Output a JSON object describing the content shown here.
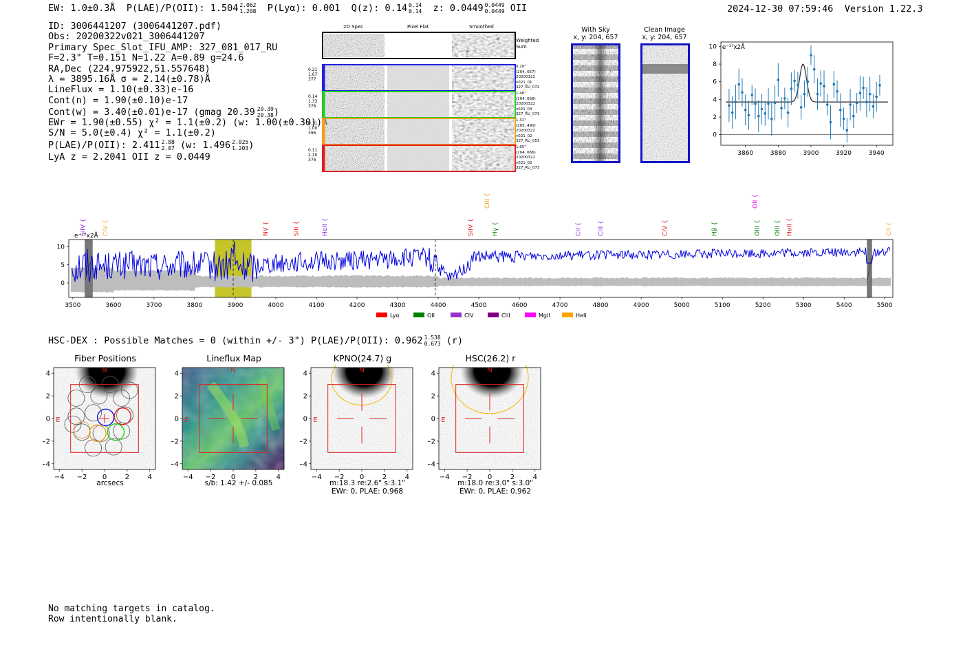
{
  "header": {
    "ew": "EW: 1.0±0.3Å",
    "plae_label": "P(LAE)/P(OII): 1.504",
    "plae_sup": "2.062",
    "plae_sub": "1.208",
    "plya": "P(Lyα): 0.001",
    "qz_label": "Q(z): 0.14",
    "qz_sup": "0.14",
    "qz_sub": "0.14",
    "z_label": "z: 0.0449",
    "z_sup": "0.0449",
    "z_sub": "0.0449",
    "z_line": "OII",
    "timestamp": "2024-12-30 07:59:46",
    "version": "Version 1.22.3"
  },
  "info": {
    "lines": [
      "ID: 3006441207 (3006441207.pdf)",
      "Obs: 20200322v021_3006441207",
      "Primary Spec_Slot_IFU_AMP: 327_081_017_RU",
      "F=2.3\"  T=0.151  N=1.22  A=0.89  g=24.6",
      "RA,Dec (224.975922,51.557648)",
      "λ = 3895.16Å  σ = 2.14(±0.78)Å",
      "LineFlux = 1.10(±0.33)e-16",
      "Cont(n) = 1.90(±0.10)e-17"
    ],
    "contw": "Cont(w) = 3.40(±0.01)e-17 (gmag 20.39",
    "contw_sup": "20.39",
    "contw_sub": "20.38",
    "ewr": "EWr = 1.90(±0.55) χ² = 1.1(±0.2) (w: 1.00(±0.30))Å",
    "sn": "S/N = 5.0(±0.4)  χ² = 1.1(±0.2)",
    "plae2": "P(LAE)/P(OII): 2.411",
    "plae2_sup": "2.88",
    "plae2_sub": "2.07",
    "plae2_w": "(w: 1.496",
    "plae2_w_sup": "2.025",
    "plae2_w_sub": "1.203",
    "lya": "LyA z = 2.2041   OII z = 0.0449"
  },
  "spec2d": {
    "col_titles": [
      "2D Spec",
      "Pixel Flat",
      "Smoothed"
    ],
    "weighted_label": "Weighted Sum",
    "rows": [
      {
        "left": [
          "0.21",
          "1.67",
          "377"
        ],
        "right": [
          "0.20\"",
          "(204, 657)",
          "20200322",
          "v021_01",
          "327_RU_072"
        ],
        "color": "#1f1fe0"
      },
      {
        "left": [
          "0.14",
          "1.33",
          "376"
        ],
        "right": [
          "1.46\"",
          "(204, 666)",
          "20200322",
          "v021_03",
          "327_RU_073"
        ],
        "color": "#22cc22"
      },
      {
        "left": [
          "0.11",
          "1.00",
          "396"
        ],
        "right": [
          "1.31\"",
          "(205, 490)",
          "20200322",
          "v021_02",
          "327_RU_053"
        ],
        "color": "#f0a020"
      },
      {
        "left": [
          "0.11",
          "2.10",
          "376"
        ],
        "right": [
          "1.65\"",
          "(204, 666)",
          "20200322",
          "v021_02",
          "327_RU_073"
        ],
        "color": "#e02020"
      }
    ]
  },
  "cutouts": {
    "with_sky_title": "With Sky",
    "with_sky_coords": "x, y: 204, 657",
    "clean_title": "Clean Image",
    "clean_coords": "x, y: 204, 657"
  },
  "zoom_chart": {
    "ylabel": "e⁻¹⁷x2Å",
    "xticks": [
      "3860",
      "3880",
      "3900",
      "3920",
      "3940"
    ],
    "yticks": [
      "0",
      "2",
      "4",
      "6",
      "8",
      "10"
    ]
  },
  "chart_data": [
    {
      "type": "scatter",
      "title": "",
      "xlabel": "",
      "ylabel": "e-17 x2Å",
      "xlim": [
        3845,
        3950
      ],
      "ylim": [
        -1.2,
        10.5
      ],
      "x": [
        3850,
        3852,
        3854,
        3856,
        3858,
        3860,
        3862,
        3864,
        3866,
        3868,
        3870,
        3872,
        3874,
        3876,
        3878,
        3880,
        3882,
        3884,
        3886,
        3888,
        3890,
        3892,
        3894,
        3896,
        3898,
        3900,
        3902,
        3904,
        3906,
        3908,
        3910,
        3912,
        3914,
        3916,
        3918,
        3920,
        3922,
        3924,
        3926,
        3928,
        3930,
        3932,
        3934,
        3936,
        3938,
        3940,
        3942
      ],
      "values": [
        3.3,
        2.5,
        3.7,
        5.7,
        4.8,
        2.8,
        2.2,
        4.5,
        3.5,
        2.1,
        2.9,
        2.4,
        3.5,
        1.8,
        3.6,
        6.2,
        3.0,
        4.1,
        2.5,
        5.2,
        6.1,
        5.6,
        3.1,
        4.6,
        6.0,
        9.0,
        7.4,
        4.6,
        5.8,
        5.5,
        3.4,
        1.4,
        5.7,
        4.9,
        2.8,
        1.8,
        0.5,
        3.4,
        2.1,
        3.6,
        4.7,
        5.3,
        3.7,
        4.6,
        3.2,
        4.3,
        5.6
      ],
      "fit_continuum": 3.7,
      "fit_peak": 8.0,
      "fit_center": 3895.16
    },
    {
      "type": "line",
      "title": "",
      "xlabel": "",
      "ylabel": "e-17 x2Å",
      "xlim": [
        3490,
        5520
      ],
      "ylim": [
        -4,
        12
      ],
      "xticks": [
        3500,
        3600,
        3700,
        3800,
        3900,
        4000,
        4100,
        4200,
        4300,
        4400,
        4500,
        4600,
        4700,
        4800,
        4900,
        5000,
        5100,
        5200,
        5300,
        5400,
        5500
      ],
      "yticks": [
        0,
        5,
        10
      ],
      "highlight_band": [
        3850,
        3940
      ],
      "dashed_lines": [
        3895,
        4393
      ],
      "masked_regions": [
        [
          3530,
          3548
        ],
        [
          5457,
          5468
        ]
      ],
      "series": [
        {
          "name": "flux",
          "color": "#0000dd"
        }
      ],
      "line_markers": [
        {
          "label": "SiIV",
          "x": 3525,
          "color": "#8a2be2",
          "row": 0
        },
        {
          "label": "CIV",
          "x": 3580,
          "color": "#f0a020",
          "row": 0
        },
        {
          "label": "NV",
          "x": 3975,
          "color": "#e02020",
          "row": 0
        },
        {
          "label": "SiII",
          "x": 4050,
          "color": "#e02020",
          "row": 0
        },
        {
          "label": "HeII",
          "x": 4120,
          "color": "#8a2be2",
          "row": 0
        },
        {
          "label": "SiIV",
          "x": 4480,
          "color": "#e02020",
          "row": 0
        },
        {
          "label": "CIII",
          "x": 4520,
          "color": "#f0a020",
          "row": 1
        },
        {
          "label": "Hγ",
          "x": 4540,
          "color": "#008000",
          "row": 0
        },
        {
          "label": "CII",
          "x": 4745,
          "color": "#8a2be2",
          "row": 0
        },
        {
          "label": "CIII",
          "x": 4800,
          "color": "#8a2be2",
          "row": 0
        },
        {
          "label": "CIV",
          "x": 4958,
          "color": "#e02020",
          "row": 0
        },
        {
          "label": "Hβ",
          "x": 5080,
          "color": "#008000",
          "row": 0
        },
        {
          "label": "OII",
          "x": 5180,
          "color": "#ee00ee",
          "row": 1
        },
        {
          "label": "OIII",
          "x": 5185,
          "color": "#008000",
          "row": 0
        },
        {
          "label": "OIII",
          "x": 5235,
          "color": "#008000",
          "row": 0
        },
        {
          "label": "HeII",
          "x": 5265,
          "color": "#e02020",
          "row": 0
        },
        {
          "label": "CII",
          "x": 5510,
          "color": "#f0a020",
          "row": 0
        }
      ],
      "legend": [
        {
          "label": "Lyα",
          "color": "#ff0000"
        },
        {
          "label": "OII",
          "color": "#008000"
        },
        {
          "label": "CIV",
          "color": "#9932cc"
        },
        {
          "label": "CIII",
          "color": "#800080"
        },
        {
          "label": "MgII",
          "color": "#ff00ff"
        },
        {
          "label": "HeII",
          "color": "#ffa500"
        }
      ]
    }
  ],
  "spectrum": {
    "ylabel": "e⁻¹⁷x2Å",
    "xticks": [
      "3500",
      "3600",
      "3700",
      "3800",
      "3900",
      "4000",
      "4100",
      "4200",
      "4300",
      "4400",
      "4500",
      "4600",
      "4700",
      "4800",
      "4900",
      "5000",
      "5100",
      "5200",
      "5300",
      "5400",
      "5500"
    ],
    "yticks": [
      "0",
      "5",
      "10"
    ]
  },
  "legend": [
    {
      "label": "Lyα",
      "color": "#ff0000"
    },
    {
      "label": "OII",
      "color": "#008000"
    },
    {
      "label": "CIV",
      "color": "#9932cc"
    },
    {
      "label": "CIII",
      "color": "#800080"
    },
    {
      "label": "MgII",
      "color": "#ff00ff"
    },
    {
      "label": "HeII",
      "color": "#ffa500"
    }
  ],
  "hsc": {
    "label": "HSC-DEX : Possible Matches = 0 (within +/- 3\")  P(LAE)/P(OII): 0.962",
    "sup": "1.538",
    "sub": "0.673",
    "band": "(r)"
  },
  "panels": [
    {
      "title": "Fiber Positions",
      "caption1": "arcsecs",
      "caption2": ""
    },
    {
      "title": "Lineflux Map",
      "caption1": "s/b: 1.42 +/- 0.085",
      "caption2": ""
    },
    {
      "title": "KPNO(24.7) g",
      "caption1": "m:18.3  re:2.6\"  s:3.1\"",
      "caption2": "EWr: 0, PLAE: 0.968"
    },
    {
      "title": "HSC(26.2) r",
      "caption1": "m:18.0  re:3.0\"  s:3.0\"",
      "caption2": "EWr: 0, PLAE: 0.962"
    }
  ],
  "panel_axis": {
    "yticks": [
      "4",
      "2",
      "0",
      "−2",
      "−4"
    ],
    "xticks": [
      "−4",
      "−2",
      "0",
      "2",
      "4"
    ],
    "north": "N",
    "east": "E"
  },
  "footer": {
    "line1": "No matching targets in catalog.",
    "line2": "Row intentionally blank."
  }
}
